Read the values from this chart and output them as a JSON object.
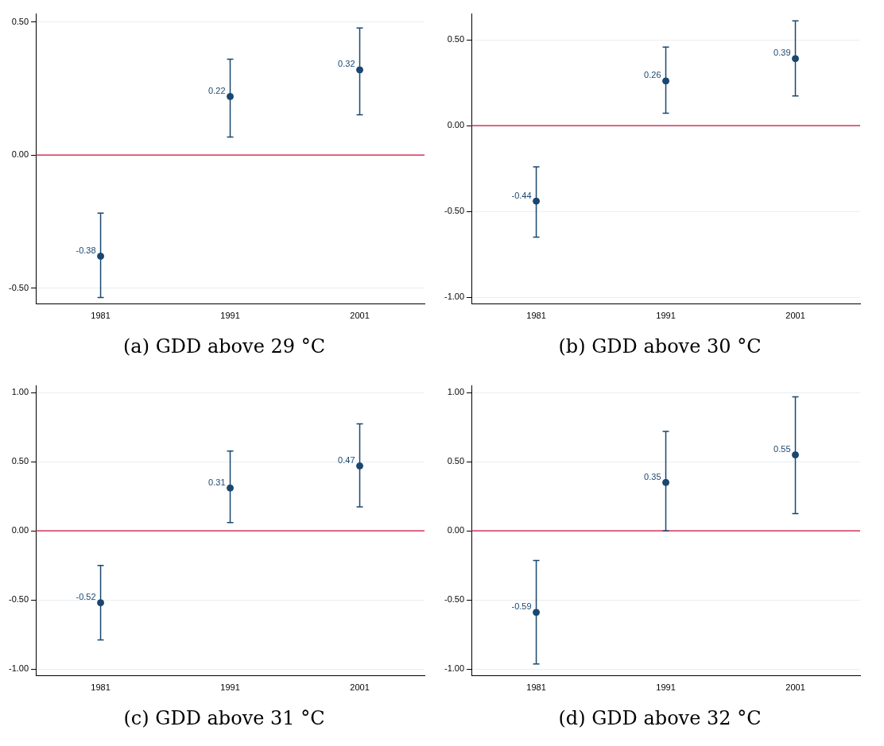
{
  "chart_data": [
    {
      "type": "scatter",
      "title": "(a) GDD above 29 °C",
      "categories": [
        "1981",
        "1991",
        "2001"
      ],
      "series": [
        {
          "color": "#1a476f",
          "values": [
            -0.38,
            0.22,
            0.32
          ],
          "errors": [
            [
              -0.535,
              -0.218
            ],
            [
              0.068,
              0.36
            ],
            [
              0.151,
              0.477
            ]
          ]
        }
      ],
      "ylim": [
        -0.56,
        0.53
      ],
      "yticks": [
        {
          "value": -0.5,
          "label": "-0.50"
        },
        {
          "value": 0,
          "label": "0.00"
        },
        {
          "value": 0.5,
          "label": "0.50"
        }
      ],
      "grid": "y",
      "marker": "circle",
      "data_labels": true,
      "ref_lines": [
        {
          "axis": "y",
          "value": 0,
          "color": "#c8103e"
        }
      ]
    },
    {
      "type": "scatter",
      "title": "(b) GDD above 30 °C",
      "categories": [
        "1981",
        "1991",
        "2001"
      ],
      "series": [
        {
          "color": "#1a476f",
          "values": [
            -0.44,
            0.26,
            0.39
          ],
          "errors": [
            [
              -0.65,
              -0.24
            ],
            [
              0.072,
              0.457
            ],
            [
              0.173,
              0.61
            ]
          ]
        }
      ],
      "ylim": [
        -1.04,
        0.65
      ],
      "yticks": [
        {
          "value": -1,
          "label": "-1.00"
        },
        {
          "value": -0.5,
          "label": "-0.50"
        },
        {
          "value": 0,
          "label": "0.00"
        },
        {
          "value": 0.5,
          "label": "0.50"
        }
      ],
      "grid": "y",
      "marker": "circle",
      "data_labels": true,
      "ref_lines": [
        {
          "axis": "y",
          "value": 0,
          "color": "#c8103e"
        }
      ]
    },
    {
      "type": "scatter",
      "title": "(c) GDD above 31 °C",
      "categories": [
        "1981",
        "1991",
        "2001"
      ],
      "series": [
        {
          "color": "#1a476f",
          "values": [
            -0.52,
            0.31,
            0.47
          ],
          "errors": [
            [
              -0.79,
              -0.25
            ],
            [
              0.06,
              0.577
            ],
            [
              0.173,
              0.774
            ]
          ]
        }
      ],
      "ylim": [
        -1.05,
        1.05
      ],
      "yticks": [
        {
          "value": -1,
          "label": "-1.00"
        },
        {
          "value": -0.5,
          "label": "-0.50"
        },
        {
          "value": 0,
          "label": "0.00"
        },
        {
          "value": 0.5,
          "label": "0.50"
        },
        {
          "value": 1,
          "label": "1.00"
        }
      ],
      "grid": "y",
      "marker": "circle",
      "data_labels": true,
      "ref_lines": [
        {
          "axis": "y",
          "value": 0,
          "color": "#c8103e"
        }
      ]
    },
    {
      "type": "scatter",
      "title": "(d) GDD above 32 °C",
      "categories": [
        "1981",
        "1991",
        "2001"
      ],
      "series": [
        {
          "color": "#1a476f",
          "values": [
            -0.59,
            0.35,
            0.55
          ],
          "errors": [
            [
              -0.964,
              -0.214
            ],
            [
              0.0,
              0.72
            ],
            [
              0.125,
              0.97
            ]
          ]
        }
      ],
      "ylim": [
        -1.05,
        1.05
      ],
      "yticks": [
        {
          "value": -1,
          "label": "-1.00"
        },
        {
          "value": -0.5,
          "label": "-0.50"
        },
        {
          "value": 0,
          "label": "0.00"
        },
        {
          "value": 0.5,
          "label": "0.50"
        },
        {
          "value": 1,
          "label": "1.00"
        }
      ],
      "grid": "y",
      "marker": "circle",
      "data_labels": true,
      "ref_lines": [
        {
          "axis": "y",
          "value": 0,
          "color": "#c8103e"
        }
      ]
    }
  ]
}
